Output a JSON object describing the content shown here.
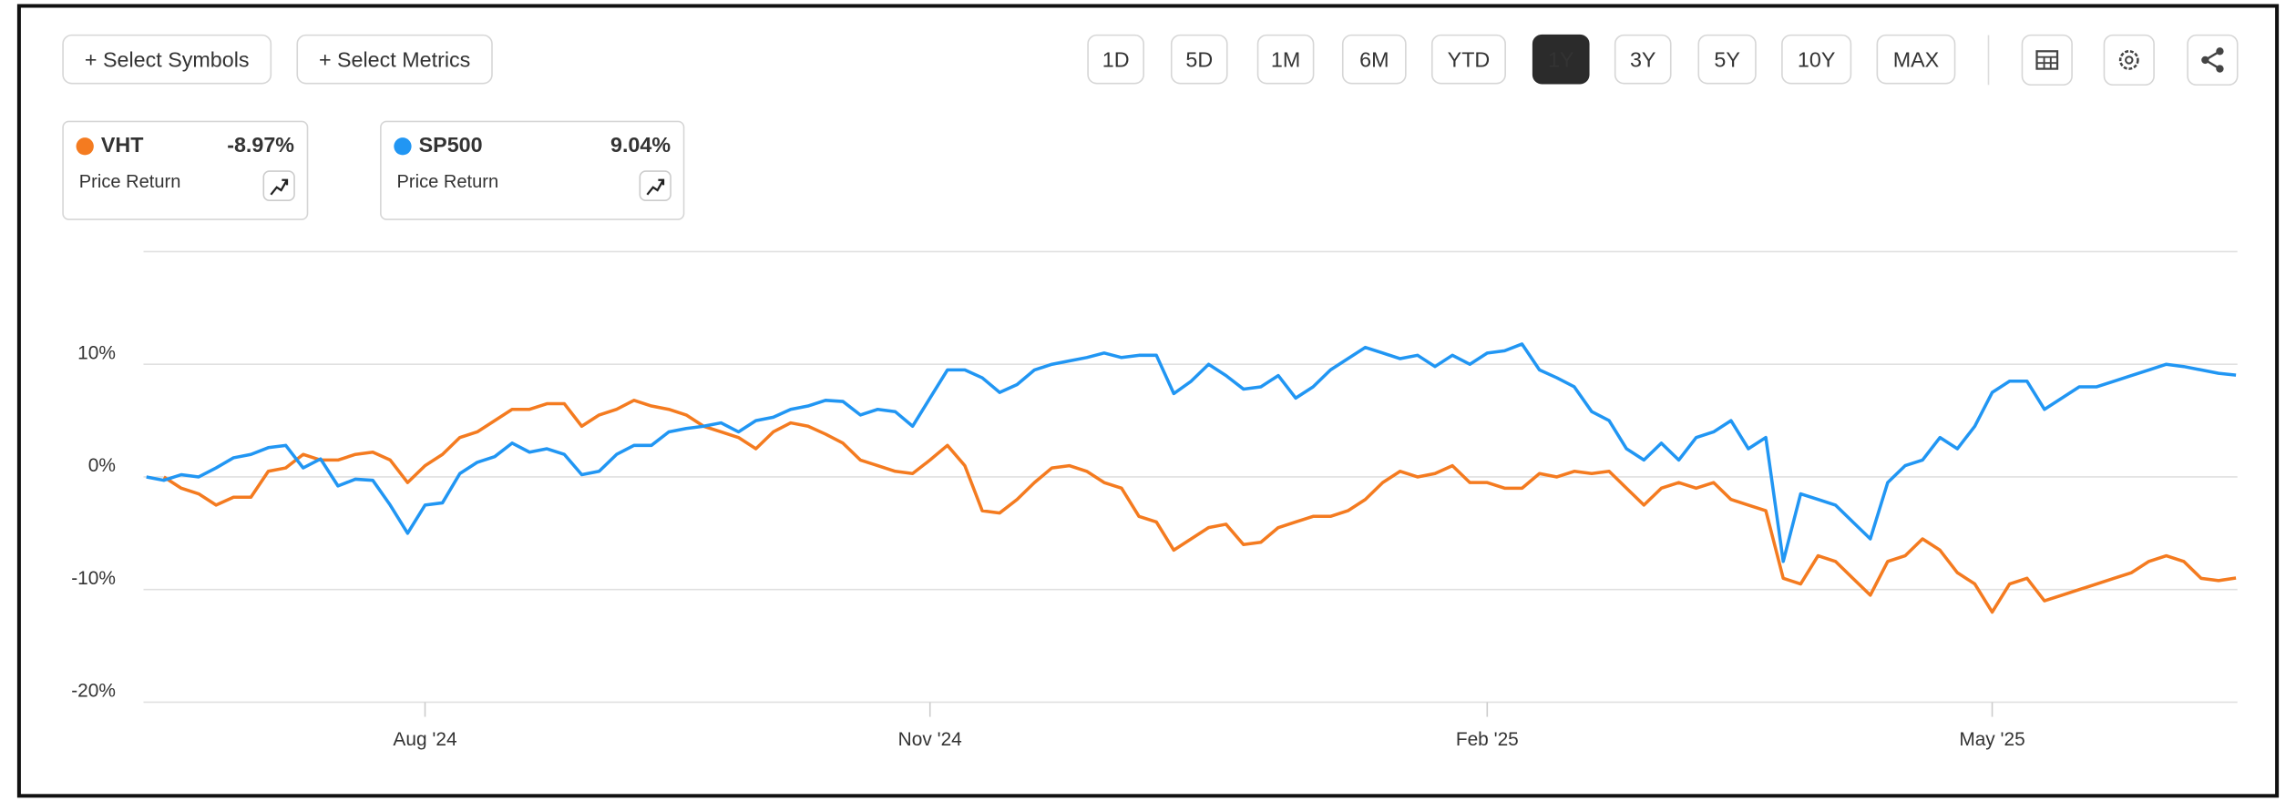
{
  "toolbar": {
    "buttons": [
      "+ Select Symbols",
      "+ Select Metrics"
    ],
    "ranges": [
      {
        "label": "1D"
      },
      {
        "label": "5D"
      },
      {
        "label": "1M"
      },
      {
        "label": "6M"
      },
      {
        "label": "YTD"
      },
      {
        "label": "1Y",
        "selected": true
      },
      {
        "label": "3Y"
      },
      {
        "label": "5Y"
      },
      {
        "label": "10Y"
      },
      {
        "label": "MAX"
      }
    ]
  },
  "chart_data": {
    "type": "line",
    "categories": [
      null,
      null,
      null,
      null,
      null,
      null,
      null,
      null,
      null,
      null,
      null,
      null,
      null,
      null,
      null,
      null,
      "Aug '24",
      null,
      null,
      null,
      null,
      null,
      null,
      null,
      null,
      null,
      null,
      null,
      null,
      null,
      null,
      null,
      null,
      null,
      null,
      null,
      null,
      null,
      null,
      null,
      null,
      null,
      null,
      null,
      null,
      "Nov '24",
      null,
      null,
      null,
      null,
      null,
      null,
      null,
      null,
      null,
      null,
      null,
      null,
      null,
      null,
      null,
      null,
      null,
      null,
      null,
      null,
      null,
      null,
      null,
      null,
      null,
      null,
      null,
      null,
      null,
      null,
      null,
      "Feb '25",
      null,
      null,
      null,
      null,
      null,
      null,
      null,
      null,
      null,
      null,
      null,
      null,
      null,
      null,
      null,
      null,
      null,
      null,
      null,
      null,
      null,
      null,
      null,
      null,
      null,
      null,
      null,
      null,
      "May '25",
      null,
      null,
      null,
      null,
      null,
      null,
      null,
      null,
      null,
      null,
      null,
      null,
      null,
      null
    ],
    "series": [
      {
        "name": "VHT",
        "change": "-8.97%",
        "metric": "Price Return",
        "color": "#f47b20",
        "values": [
          null,
          0,
          -1.0,
          -1.5,
          -2.5,
          -1.8,
          -1.8,
          0.5,
          0.8,
          2.0,
          1.5,
          1.5,
          2.0,
          2.2,
          1.5,
          -0.5,
          1.0,
          2.0,
          3.5,
          4.0,
          5.0,
          6.0,
          6.0,
          6.5,
          6.5,
          4.5,
          5.5,
          6.0,
          6.8,
          6.3,
          6.0,
          5.5,
          4.5,
          4.0,
          3.5,
          2.5,
          4.0,
          4.8,
          4.5,
          3.8,
          3.0,
          1.5,
          1.0,
          0.5,
          0.3,
          1.5,
          2.8,
          1.0,
          -3.0,
          -3.2,
          -2.0,
          -0.5,
          0.8,
          1.0,
          0.5,
          -0.5,
          -1.0,
          -3.5,
          -4.0,
          -6.5,
          -5.5,
          -4.5,
          -4.2,
          -6.0,
          -5.8,
          -4.5,
          -4.0,
          -3.5,
          -3.5,
          -3.0,
          -2.0,
          -0.5,
          0.5,
          0.0,
          0.3,
          1.0,
          -0.5,
          -0.5,
          -1.0,
          -1.0,
          0.3,
          0.0,
          0.5,
          0.3,
          0.5,
          -1.0,
          -2.5,
          -1.0,
          -0.5,
          -1.0,
          -0.5,
          -2.0,
          -2.5,
          -3.0,
          -9.0,
          -9.5,
          -7.0,
          -7.5,
          -9.0,
          -10.5,
          -7.5,
          -7.0,
          -5.5,
          -6.5,
          -8.5,
          -9.5,
          -12.0,
          -9.5,
          -9.0,
          -11.0,
          -10.5,
          -10.0,
          -9.5,
          -9.0,
          -8.5,
          -7.5,
          -7.0,
          -7.5,
          -9.0,
          -9.2,
          -8.97
        ]
      },
      {
        "name": "SP500",
        "change": "9.04%",
        "metric": "Price Return",
        "color": "#2196f3",
        "values": [
          0,
          -0.3,
          0.2,
          0,
          0.8,
          1.7,
          2.0,
          2.6,
          2.8,
          0.8,
          1.6,
          -0.8,
          -0.2,
          -0.3,
          -2.5,
          -5.0,
          -2.5,
          -2.3,
          0.3,
          1.3,
          1.8,
          3.0,
          2.2,
          2.5,
          2.0,
          0.2,
          0.5,
          2.0,
          2.8,
          2.8,
          4.0,
          4.3,
          4.5,
          4.8,
          4.0,
          5.0,
          5.3,
          6.0,
          6.3,
          6.8,
          6.7,
          5.5,
          6.0,
          5.8,
          4.5,
          7.0,
          9.5,
          9.5,
          8.8,
          7.5,
          8.2,
          9.5,
          10.0,
          10.3,
          10.6,
          11.0,
          10.6,
          10.8,
          10.8,
          7.4,
          8.5,
          10.0,
          9.0,
          7.8,
          8.0,
          9.0,
          7.0,
          8.0,
          9.5,
          10.5,
          11.5,
          11.0,
          10.5,
          10.8,
          9.8,
          10.8,
          10.0,
          11.0,
          11.2,
          11.8,
          9.5,
          8.8,
          8.0,
          5.8,
          5.0,
          2.5,
          1.5,
          3.0,
          1.5,
          3.5,
          4.0,
          5.0,
          2.5,
          3.5,
          -7.5,
          -1.5,
          -2.0,
          -2.5,
          -4.0,
          -5.5,
          -0.5,
          1.0,
          1.5,
          3.5,
          2.5,
          4.5,
          7.5,
          8.5,
          8.5,
          6.0,
          7.0,
          8.0,
          8.0,
          8.5,
          9.0,
          9.5,
          10.0,
          9.8,
          9.5,
          9.2,
          9.04
        ]
      }
    ],
    "ylim": [
      -20,
      20
    ],
    "yticks": [
      {
        "value": -20,
        "label": "-20%"
      },
      {
        "value": -10,
        "label": "-10%"
      },
      {
        "value": 0,
        "label": "0%"
      },
      {
        "value": 10,
        "label": "10%"
      }
    ],
    "grid": true
  }
}
